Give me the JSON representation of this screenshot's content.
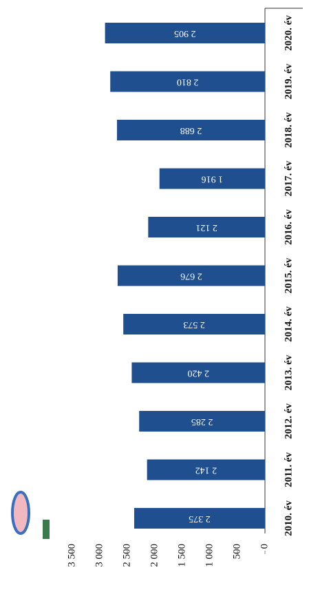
{
  "chart_data": {
    "type": "bar",
    "categories": [
      "2010. év",
      "2011. év",
      "2012. év",
      "2013. év",
      "2014. év",
      "2015. év",
      "2016. év",
      "2017. év",
      "2018. év",
      "2019. év",
      "2020. év"
    ],
    "values": [
      2375,
      2142,
      2285,
      2420,
      2573,
      2676,
      2121,
      1916,
      2688,
      2810,
      2905
    ],
    "value_labels": [
      "2 375",
      "2 142",
      "2 285",
      "2 420",
      "2 573",
      "2 676",
      "2 121",
      "1 916",
      "2 688",
      "2 810",
      "2 905"
    ],
    "color": "#1f4f8f",
    "ylim": [
      0,
      3500
    ],
    "yticks": [
      0,
      500,
      {
        "value": 1000,
        "label": "1 000"
      },
      {
        "value": 1500,
        "label": "1 500"
      },
      {
        "value": 2000,
        "label": "2 000"
      },
      {
        "value": 2500,
        "label": "2 500"
      },
      {
        "value": 3000,
        "label": "3 000"
      },
      {
        "value": 3500,
        "label": "3 500"
      }
    ]
  }
}
